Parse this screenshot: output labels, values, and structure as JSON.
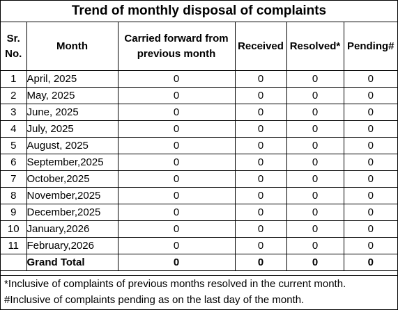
{
  "title": "Trend of monthly disposal of complaints",
  "headers": {
    "sr_no": "Sr. No.",
    "month": "Month",
    "carried_forward": "Carried forward from previous month",
    "received": "Received",
    "resolved": "Resolved*",
    "pending": "Pending#"
  },
  "rows": [
    {
      "sr": "1",
      "month": "April, 2025",
      "carried_forward": "0",
      "received": "0",
      "resolved": "0",
      "pending": "0"
    },
    {
      "sr": "2",
      "month": "May, 2025",
      "carried_forward": "0",
      "received": "0",
      "resolved": "0",
      "pending": "0"
    },
    {
      "sr": "3",
      "month": "June, 2025",
      "carried_forward": "0",
      "received": "0",
      "resolved": "0",
      "pending": "0"
    },
    {
      "sr": "4",
      "month": "July, 2025",
      "carried_forward": "0",
      "received": "0",
      "resolved": "0",
      "pending": "0"
    },
    {
      "sr": "5",
      "month": "August, 2025",
      "carried_forward": "0",
      "received": "0",
      "resolved": "0",
      "pending": "0"
    },
    {
      "sr": "6",
      "month": "September,2025",
      "carried_forward": "0",
      "received": "0",
      "resolved": "0",
      "pending": "0"
    },
    {
      "sr": "7",
      "month": "October,2025",
      "carried_forward": "0",
      "received": "0",
      "resolved": "0",
      "pending": "0"
    },
    {
      "sr": "8",
      "month": "November,2025",
      "carried_forward": "0",
      "received": "0",
      "resolved": "0",
      "pending": "0"
    },
    {
      "sr": "9",
      "month": "December,2025",
      "carried_forward": "0",
      "received": "0",
      "resolved": "0",
      "pending": "0"
    },
    {
      "sr": "10",
      "month": "January,2026",
      "carried_forward": "0",
      "received": "0",
      "resolved": "0",
      "pending": "0"
    },
    {
      "sr": "11",
      "month": "February,2026",
      "carried_forward": "0",
      "received": "0",
      "resolved": "0",
      "pending": "0"
    }
  ],
  "total": {
    "label": "Grand Total",
    "carried_forward": "0",
    "received": "0",
    "resolved": "0",
    "pending": "0"
  },
  "notes": [
    "*Inclusive of complaints of previous months resolved in the current month.",
    "#Inclusive of complaints pending as on the last day of the month."
  ]
}
